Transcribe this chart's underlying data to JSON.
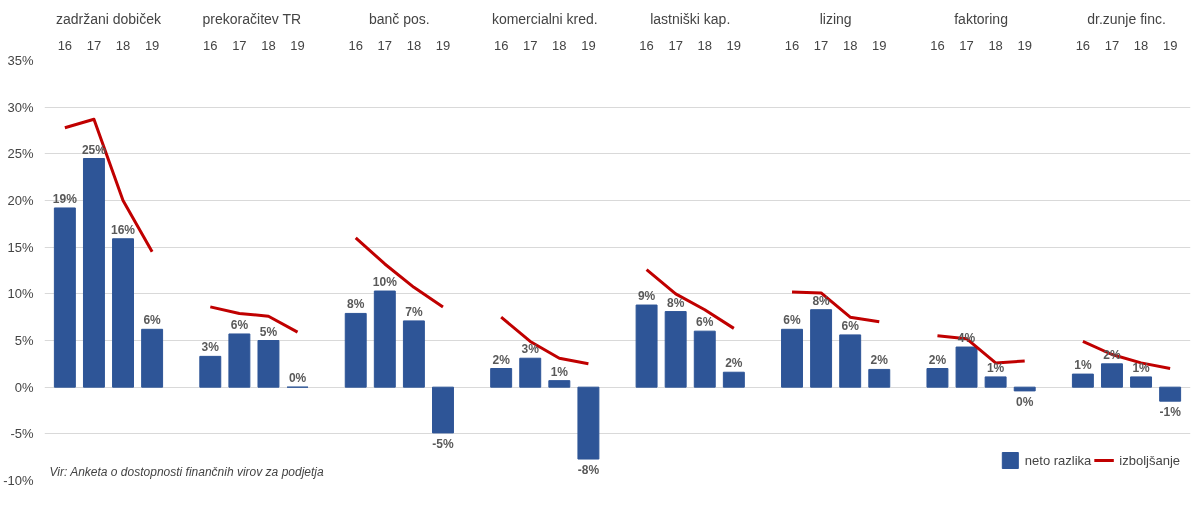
{
  "chart_data": {
    "type": "bar",
    "categories": [
      "16",
      "17",
      "18",
      "19",
      null,
      "16",
      "17",
      "18",
      "19",
      null,
      "16",
      "17",
      "18",
      "19",
      null,
      "16",
      "17",
      "18",
      "19",
      null,
      "16",
      "17",
      "18",
      "19",
      null,
      "16",
      "17",
      "18",
      "19",
      null,
      "16",
      "17",
      "18",
      "19",
      null,
      "16",
      "17",
      "18",
      "19"
    ],
    "series": [
      {
        "name": "neto razlika",
        "color": "#2e5597",
        "values": [
          19.2,
          24.5,
          15.9,
          6.2,
          null,
          3.3,
          5.7,
          5.0,
          0.0,
          null,
          7.9,
          10.3,
          7.1,
          -4.9,
          null,
          2.0,
          3.1,
          0.7,
          -7.7,
          null,
          8.8,
          8.1,
          6.0,
          1.6,
          null,
          6.2,
          8.3,
          5.6,
          1.9,
          null,
          2.0,
          4.3,
          1.1,
          -0.4,
          null,
          1.4,
          2.5,
          1.1,
          -1.5
        ],
        "value_labels": [
          "19%",
          "25%",
          "16%",
          "6%",
          null,
          "3%",
          "6%",
          "5%",
          "0%",
          null,
          "8%",
          "10%",
          "7%",
          "-5%",
          null,
          "2%",
          "3%",
          "1%",
          "-8%",
          null,
          "9%",
          "8%",
          "6%",
          "2%",
          null,
          "6%",
          "8%",
          "6%",
          "2%",
          null,
          "2%",
          "4%",
          "1%",
          "0%",
          null,
          "1%",
          "2%",
          "1%",
          "-1%"
        ]
      },
      {
        "name": "izboljšanje",
        "type": "line",
        "color": "#c00000",
        "values": [
          27.8,
          28.7,
          20.0,
          14.5,
          null,
          8.6,
          7.9,
          7.6,
          5.9,
          null,
          16.0,
          13.2,
          10.7,
          8.6,
          null,
          7.5,
          4.9,
          3.1,
          2.5,
          null,
          12.6,
          10.0,
          8.3,
          6.3,
          null,
          10.2,
          10.1,
          7.5,
          7.0,
          null,
          5.5,
          5.2,
          2.6,
          2.8,
          null,
          4.9,
          3.5,
          2.6,
          2.0
        ]
      }
    ],
    "annotations": [
      "zadržani dobiček",
      "prekoračitev  TR",
      "banč pos.",
      "komercialni kred.",
      "lastniški kap.",
      "lizing",
      "faktoring",
      "dr.zunje finc.",
      "Vir: Anketa o dostopnosti finančnih virov za podjetja"
    ],
    "ylim": [
      -10,
      35
    ],
    "yticks": [
      {
        "value": -10,
        "label": "-10%"
      },
      {
        "value": -5,
        "label": "-5%"
      },
      {
        "value": 0,
        "label": "0%"
      },
      {
        "value": 5,
        "label": "5%"
      },
      {
        "value": 10,
        "label": "10%"
      },
      {
        "value": 15,
        "label": "15%"
      },
      {
        "value": 20,
        "label": "20%"
      },
      {
        "value": 25,
        "label": "25%"
      },
      {
        "value": 30,
        "label": "30%"
      },
      {
        "value": 35,
        "label": "35%"
      }
    ],
    "grid": "y",
    "legend": "bottom right"
  }
}
